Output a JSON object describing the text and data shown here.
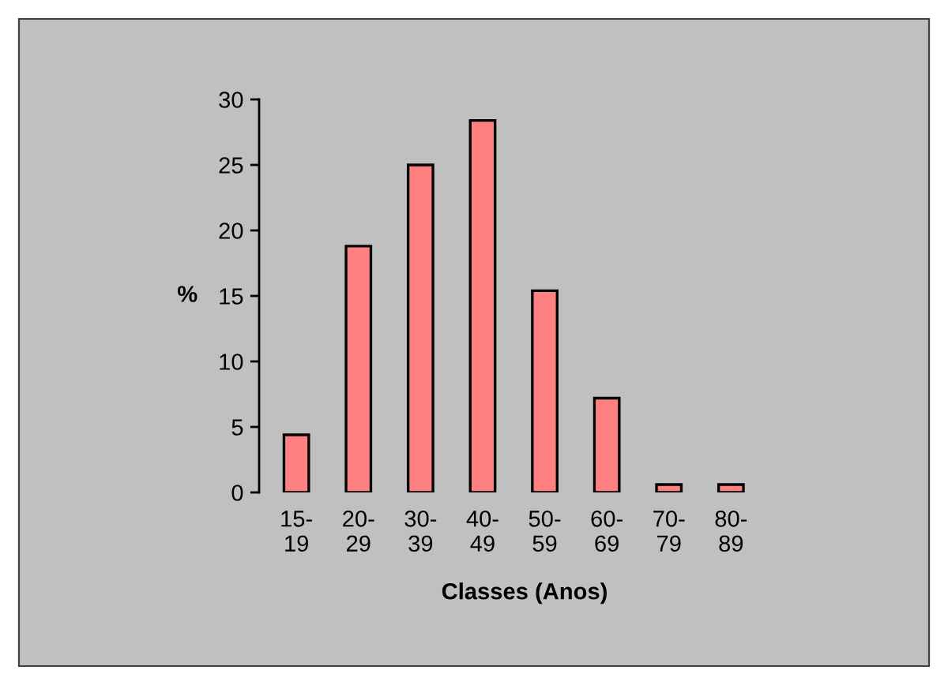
{
  "chart_data": {
    "type": "bar",
    "ylabel": "%",
    "xlabel": "Classes (Anos)",
    "categories": [
      "15-\n19",
      "20-\n29",
      "30-\n39",
      "40-\n49",
      "50-\n59",
      "60-\n69",
      "70-\n79",
      "80-\n89"
    ],
    "values": [
      4.4,
      18.8,
      25.0,
      28.4,
      15.4,
      7.2,
      0.6,
      0.6
    ],
    "color": "#ff8080",
    "ylim": [
      0,
      30
    ],
    "yticks": [
      0,
      5,
      10,
      15,
      20,
      25,
      30
    ]
  }
}
